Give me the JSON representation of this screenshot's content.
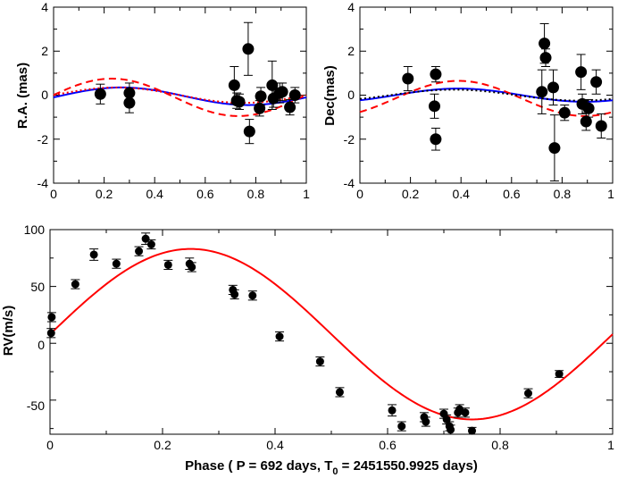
{
  "chart_data": [
    {
      "id": "ra",
      "type": "scatter",
      "title": "",
      "ylabel": "R.A. (mas)",
      "xlabel": "",
      "xlim": [
        0,
        1
      ],
      "ylim": [
        -4,
        4
      ],
      "xticks": [
        "0",
        "0.2",
        "0.4",
        "0.6",
        "0.8",
        "1"
      ],
      "yticks": [
        "-4",
        "-2",
        "0",
        "2",
        "4"
      ],
      "points": [
        {
          "x": 0.185,
          "y": 0.05,
          "err": 0.45
        },
        {
          "x": 0.3,
          "y": 0.1,
          "err": 0.45
        },
        {
          "x": 0.3,
          "y": -0.35,
          "err": 0.45
        },
        {
          "x": 0.715,
          "y": 0.45,
          "err": 0.85
        },
        {
          "x": 0.725,
          "y": -0.25,
          "err": 0.35
        },
        {
          "x": 0.735,
          "y": -0.3,
          "err": 0.35
        },
        {
          "x": 0.77,
          "y": 2.1,
          "err": 1.2
        },
        {
          "x": 0.775,
          "y": -1.65,
          "err": 0.55
        },
        {
          "x": 0.82,
          "y": -0.05,
          "err": 0.4
        },
        {
          "x": 0.815,
          "y": -0.6,
          "err": 0.35
        },
        {
          "x": 0.865,
          "y": 0.45,
          "err": 1.1
        },
        {
          "x": 0.87,
          "y": -0.15,
          "err": 0.4
        },
        {
          "x": 0.895,
          "y": 0.1,
          "err": 0.45
        },
        {
          "x": 0.905,
          "y": 0.15,
          "err": 0.4
        },
        {
          "x": 0.935,
          "y": -0.55,
          "err": 0.35
        },
        {
          "x": 0.955,
          "y": 0.0,
          "err": 0.35
        }
      ],
      "curves": [
        {
          "name": "model-blue-solid",
          "color": "#0000ff",
          "style": "solid",
          "amp": 0.4,
          "phase_shift": 0.02,
          "offset": -0.05
        },
        {
          "name": "model-red-dashed",
          "color": "#ff0000",
          "style": "dashed",
          "amp": 0.85,
          "phase_shift": -0.02,
          "offset": -0.1
        },
        {
          "name": "model-red-dotted",
          "color": "#ff0000",
          "style": "dotted",
          "amp": 0.35,
          "phase_shift": 0.0,
          "offset": 0.0
        }
      ]
    },
    {
      "id": "dec",
      "type": "scatter",
      "title": "",
      "ylabel": "Dec(mas)",
      "xlabel": "",
      "xlim": [
        0,
        1
      ],
      "ylim": [
        -4,
        4
      ],
      "xticks": [
        "0",
        "0.2",
        "0.4",
        "0.6",
        "0.8",
        "1"
      ],
      "yticks": [
        "-4",
        "-2",
        "0",
        "2",
        "4"
      ],
      "points": [
        {
          "x": 0.19,
          "y": 0.75,
          "err": 0.55
        },
        {
          "x": 0.3,
          "y": 0.95,
          "err": 0.35
        },
        {
          "x": 0.295,
          "y": -0.5,
          "err": 0.55
        },
        {
          "x": 0.3,
          "y": -2.0,
          "err": 0.5
        },
        {
          "x": 0.72,
          "y": 0.15,
          "err": 1.0
        },
        {
          "x": 0.73,
          "y": 2.35,
          "err": 0.9
        },
        {
          "x": 0.735,
          "y": 1.7,
          "err": 0.4
        },
        {
          "x": 0.765,
          "y": 0.35,
          "err": 0.8
        },
        {
          "x": 0.77,
          "y": -2.4,
          "err": 1.5
        },
        {
          "x": 0.81,
          "y": -0.8,
          "err": 0.35
        },
        {
          "x": 0.875,
          "y": 1.05,
          "err": 0.8
        },
        {
          "x": 0.88,
          "y": -0.4,
          "err": 0.45
        },
        {
          "x": 0.895,
          "y": -1.2,
          "err": 0.4
        },
        {
          "x": 0.905,
          "y": -0.6,
          "err": 0.4
        },
        {
          "x": 0.935,
          "y": 0.6,
          "err": 0.55
        },
        {
          "x": 0.955,
          "y": -1.4,
          "err": 0.55
        }
      ],
      "curves": [
        {
          "name": "model-blue-solid",
          "color": "#0000ff",
          "style": "solid",
          "amp": 0.3,
          "phase_shift": 0.14,
          "offset": 0.0
        },
        {
          "name": "model-red-dashed",
          "color": "#ff0000",
          "style": "dashed",
          "amp": 0.8,
          "phase_shift": 0.14,
          "offset": -0.15
        },
        {
          "name": "model-black-dotted",
          "color": "#000000",
          "style": "dotted",
          "amp": 0.25,
          "phase_shift": 0.12,
          "offset": 0.0
        }
      ]
    },
    {
      "id": "rv",
      "type": "scatter",
      "title": "",
      "ylabel": "RV(m/s)",
      "xlabel_pre": "Phase ( P = 692 days, T",
      "xlabel_sub": "0",
      "xlabel_post": " = 2451550.9925 days)",
      "xlim": [
        0,
        1
      ],
      "ylim": [
        -80,
        100
      ],
      "xticks": [
        "0",
        "0.2",
        "0.4",
        "0.6",
        "0.8",
        "1"
      ],
      "yticks": [
        "-50",
        "0",
        "50",
        "100"
      ],
      "points": [
        {
          "x": 0.002,
          "y": 9,
          "err": 4
        },
        {
          "x": 0.003,
          "y": 23,
          "err": 4
        },
        {
          "x": 0.045,
          "y": 52,
          "err": 4
        },
        {
          "x": 0.078,
          "y": 78,
          "err": 5
        },
        {
          "x": 0.118,
          "y": 70,
          "err": 4
        },
        {
          "x": 0.158,
          "y": 81,
          "err": 4
        },
        {
          "x": 0.17,
          "y": 92,
          "err": 5
        },
        {
          "x": 0.18,
          "y": 87,
          "err": 4
        },
        {
          "x": 0.21,
          "y": 69,
          "err": 4
        },
        {
          "x": 0.248,
          "y": 70,
          "err": 5
        },
        {
          "x": 0.252,
          "y": 67,
          "err": 4
        },
        {
          "x": 0.325,
          "y": 47,
          "err": 4
        },
        {
          "x": 0.328,
          "y": 43,
          "err": 4
        },
        {
          "x": 0.36,
          "y": 42,
          "err": 4
        },
        {
          "x": 0.408,
          "y": 6,
          "err": 4
        },
        {
          "x": 0.48,
          "y": -16,
          "err": 4
        },
        {
          "x": 0.515,
          "y": -43,
          "err": 4
        },
        {
          "x": 0.608,
          "y": -59,
          "err": 5
        },
        {
          "x": 0.625,
          "y": -73,
          "err": 4
        },
        {
          "x": 0.665,
          "y": -65,
          "err": 4
        },
        {
          "x": 0.668,
          "y": -69,
          "err": 4
        },
        {
          "x": 0.7,
          "y": -62,
          "err": 4
        },
        {
          "x": 0.705,
          "y": -67,
          "err": 4
        },
        {
          "x": 0.71,
          "y": -73,
          "err": 4
        },
        {
          "x": 0.712,
          "y": -76,
          "err": 4
        },
        {
          "x": 0.725,
          "y": -61,
          "err": 4
        },
        {
          "x": 0.728,
          "y": -58,
          "err": 4
        },
        {
          "x": 0.738,
          "y": -61,
          "err": 4
        },
        {
          "x": 0.75,
          "y": -77,
          "err": 3
        },
        {
          "x": 0.85,
          "y": -44,
          "err": 4
        },
        {
          "x": 0.905,
          "y": -27,
          "err": 3
        }
      ],
      "curves": [
        {
          "name": "rv-fit-curve",
          "color": "#ff0000",
          "style": "solid",
          "amp": 75,
          "phase_shift": 0.0,
          "offset": 8
        }
      ]
    }
  ]
}
